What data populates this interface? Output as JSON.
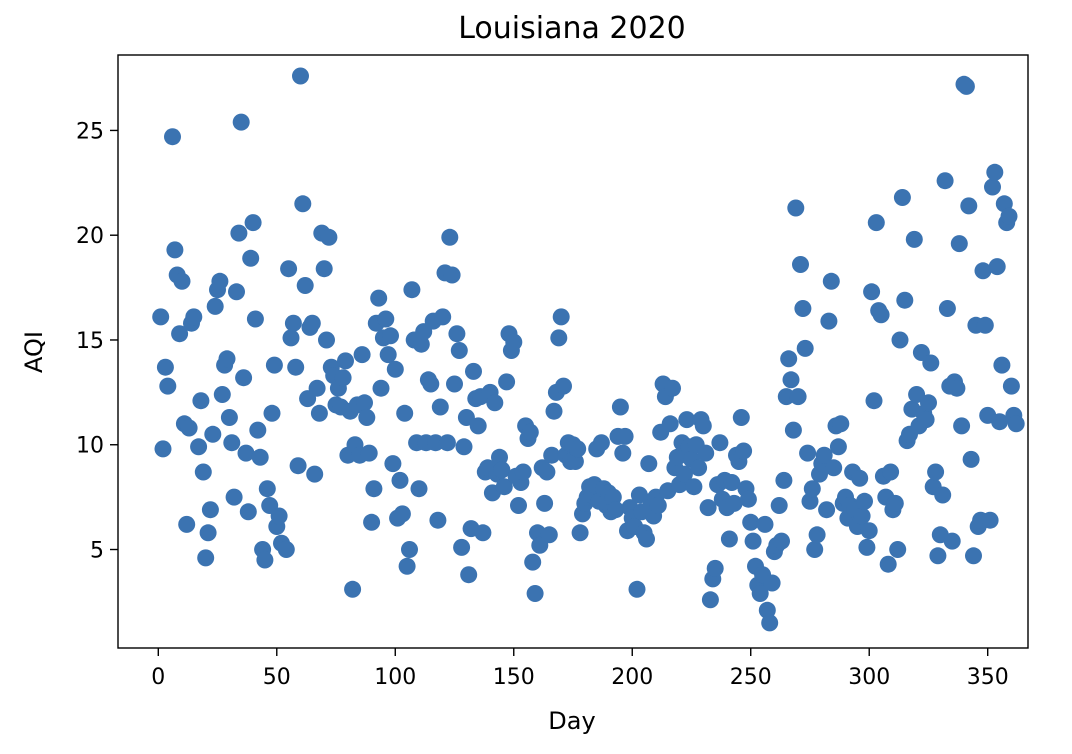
{
  "chart_data": {
    "type": "scatter",
    "title": "Louisiana 2020",
    "xlabel": "Day",
    "ylabel": "AQI",
    "xlim": [
      -17,
      367
    ],
    "ylim": [
      0.3,
      28.6
    ],
    "xticks": [
      0,
      50,
      100,
      150,
      200,
      250,
      300,
      350
    ],
    "yticks": [
      5,
      10,
      15,
      20,
      25
    ],
    "marker_color": "#3b73b1",
    "grid": false,
    "legend": "none",
    "points": [
      [
        1,
        16.1
      ],
      [
        2,
        9.8
      ],
      [
        3,
        13.7
      ],
      [
        4,
        12.8
      ],
      [
        6,
        24.7
      ],
      [
        7,
        19.3
      ],
      [
        8,
        18.1
      ],
      [
        9,
        15.3
      ],
      [
        10,
        17.8
      ],
      [
        11,
        11.0
      ],
      [
        12,
        6.2
      ],
      [
        13,
        10.8
      ],
      [
        14,
        15.8
      ],
      [
        15,
        16.1
      ],
      [
        17,
        9.9
      ],
      [
        18,
        12.1
      ],
      [
        19,
        8.7
      ],
      [
        20,
        4.6
      ],
      [
        21,
        5.8
      ],
      [
        22,
        6.9
      ],
      [
        23,
        10.5
      ],
      [
        24,
        16.6
      ],
      [
        25,
        17.4
      ],
      [
        26,
        17.8
      ],
      [
        27,
        12.4
      ],
      [
        28,
        13.8
      ],
      [
        29,
        14.1
      ],
      [
        30,
        11.3
      ],
      [
        31,
        10.1
      ],
      [
        32,
        7.5
      ],
      [
        33,
        17.3
      ],
      [
        34,
        20.1
      ],
      [
        35,
        25.4
      ],
      [
        36,
        13.2
      ],
      [
        37,
        9.6
      ],
      [
        38,
        6.8
      ],
      [
        39,
        18.9
      ],
      [
        40,
        20.6
      ],
      [
        41,
        16.0
      ],
      [
        42,
        10.7
      ],
      [
        43,
        9.4
      ],
      [
        44,
        5.0
      ],
      [
        45,
        4.5
      ],
      [
        46,
        7.9
      ],
      [
        47,
        7.1
      ],
      [
        48,
        11.5
      ],
      [
        49,
        13.8
      ],
      [
        50,
        6.1
      ],
      [
        51,
        6.6
      ],
      [
        52,
        5.3
      ],
      [
        54,
        5.0
      ],
      [
        55,
        18.4
      ],
      [
        56,
        15.1
      ],
      [
        57,
        15.8
      ],
      [
        58,
        13.7
      ],
      [
        59,
        9.0
      ],
      [
        60,
        27.6
      ],
      [
        61,
        21.5
      ],
      [
        62,
        17.6
      ],
      [
        63,
        12.2
      ],
      [
        64,
        15.6
      ],
      [
        65,
        15.8
      ],
      [
        66,
        8.6
      ],
      [
        67,
        12.7
      ],
      [
        68,
        11.5
      ],
      [
        69,
        20.1
      ],
      [
        70,
        18.4
      ],
      [
        71,
        15.0
      ],
      [
        72,
        19.9
      ],
      [
        73,
        13.7
      ],
      [
        74,
        13.3
      ],
      [
        75,
        11.9
      ],
      [
        76,
        12.7
      ],
      [
        77,
        11.8
      ],
      [
        78,
        13.2
      ],
      [
        79,
        14.0
      ],
      [
        80,
        9.5
      ],
      [
        81,
        11.6
      ],
      [
        82,
        3.1
      ],
      [
        83,
        10.0
      ],
      [
        84,
        11.9
      ],
      [
        85,
        9.5
      ],
      [
        86,
        14.3
      ],
      [
        87,
        12.0
      ],
      [
        88,
        11.3
      ],
      [
        89,
        9.6
      ],
      [
        90,
        6.3
      ],
      [
        91,
        7.9
      ],
      [
        92,
        15.8
      ],
      [
        93,
        17.0
      ],
      [
        94,
        12.7
      ],
      [
        95,
        15.1
      ],
      [
        96,
        16.0
      ],
      [
        97,
        14.3
      ],
      [
        98,
        15.2
      ],
      [
        99,
        9.1
      ],
      [
        100,
        13.6
      ],
      [
        101,
        6.5
      ],
      [
        102,
        8.3
      ],
      [
        103,
        6.7
      ],
      [
        104,
        11.5
      ],
      [
        105,
        4.2
      ],
      [
        106,
        5.0
      ],
      [
        107,
        17.4
      ],
      [
        108,
        15.0
      ],
      [
        109,
        10.1
      ],
      [
        110,
        7.9
      ],
      [
        111,
        14.8
      ],
      [
        112,
        15.4
      ],
      [
        113,
        10.1
      ],
      [
        114,
        13.1
      ],
      [
        115,
        12.9
      ],
      [
        116,
        15.9
      ],
      [
        117,
        10.1
      ],
      [
        118,
        6.4
      ],
      [
        119,
        11.8
      ],
      [
        120,
        16.1
      ],
      [
        121,
        18.2
      ],
      [
        122,
        10.1
      ],
      [
        123,
        19.9
      ],
      [
        124,
        18.1
      ],
      [
        125,
        12.9
      ],
      [
        126,
        15.3
      ],
      [
        127,
        14.5
      ],
      [
        128,
        5.1
      ],
      [
        129,
        9.9
      ],
      [
        130,
        11.3
      ],
      [
        131,
        3.8
      ],
      [
        132,
        6.0
      ],
      [
        133,
        13.5
      ],
      [
        134,
        12.2
      ],
      [
        135,
        10.9
      ],
      [
        136,
        12.3
      ],
      [
        137,
        5.8
      ],
      [
        138,
        8.7
      ],
      [
        139,
        8.9
      ],
      [
        140,
        12.5
      ],
      [
        141,
        7.7
      ],
      [
        142,
        12.0
      ],
      [
        143,
        8.6
      ],
      [
        144,
        9.4
      ],
      [
        145,
        8.8
      ],
      [
        146,
        8.0
      ],
      [
        147,
        13.0
      ],
      [
        148,
        15.3
      ],
      [
        149,
        14.5
      ],
      [
        150,
        14.9
      ],
      [
        151,
        8.5
      ],
      [
        152,
        7.1
      ],
      [
        153,
        8.2
      ],
      [
        154,
        8.7
      ],
      [
        155,
        10.9
      ],
      [
        156,
        10.3
      ],
      [
        157,
        10.6
      ],
      [
        158,
        4.4
      ],
      [
        159,
        2.9
      ],
      [
        160,
        5.8
      ],
      [
        161,
        5.2
      ],
      [
        162,
        8.9
      ],
      [
        163,
        7.2
      ],
      [
        164,
        8.7
      ],
      [
        165,
        5.7
      ],
      [
        166,
        9.5
      ],
      [
        167,
        11.6
      ],
      [
        168,
        12.5
      ],
      [
        169,
        15.1
      ],
      [
        170,
        16.1
      ],
      [
        171,
        12.8
      ],
      [
        172,
        9.5
      ],
      [
        173,
        10.1
      ],
      [
        174,
        9.2
      ],
      [
        175,
        10.0
      ],
      [
        176,
        9.2
      ],
      [
        177,
        9.8
      ],
      [
        178,
        5.8
      ],
      [
        179,
        6.7
      ],
      [
        180,
        7.2
      ],
      [
        181,
        7.5
      ],
      [
        182,
        8.0
      ],
      [
        183,
        7.6
      ],
      [
        184,
        8.1
      ],
      [
        185,
        9.8
      ],
      [
        186,
        7.3
      ],
      [
        187,
        10.1
      ],
      [
        188,
        7.9
      ],
      [
        189,
        7.1
      ],
      [
        190,
        7.7
      ],
      [
        191,
        6.8
      ],
      [
        192,
        7.5
      ],
      [
        193,
        6.9
      ],
      [
        194,
        10.4
      ],
      [
        195,
        11.8
      ],
      [
        196,
        9.6
      ],
      [
        197,
        10.4
      ],
      [
        198,
        5.9
      ],
      [
        199,
        7.0
      ],
      [
        200,
        6.5
      ],
      [
        201,
        6.1
      ],
      [
        202,
        3.1
      ],
      [
        203,
        7.6
      ],
      [
        204,
        6.8
      ],
      [
        205,
        5.8
      ],
      [
        206,
        5.5
      ],
      [
        207,
        9.1
      ],
      [
        208,
        7.3
      ],
      [
        209,
        6.6
      ],
      [
        210,
        7.5
      ],
      [
        211,
        7.1
      ],
      [
        212,
        10.6
      ],
      [
        213,
        12.9
      ],
      [
        214,
        12.3
      ],
      [
        215,
        7.8
      ],
      [
        216,
        11.0
      ],
      [
        217,
        12.7
      ],
      [
        218,
        8.9
      ],
      [
        219,
        9.4
      ],
      [
        220,
        8.1
      ],
      [
        221,
        10.1
      ],
      [
        222,
        8.6
      ],
      [
        223,
        11.2
      ],
      [
        224,
        9.9
      ],
      [
        225,
        9.3
      ],
      [
        226,
        8.0
      ],
      [
        227,
        10.0
      ],
      [
        228,
        8.9
      ],
      [
        229,
        11.2
      ],
      [
        230,
        10.9
      ],
      [
        231,
        9.6
      ],
      [
        232,
        7.0
      ],
      [
        233,
        2.6
      ],
      [
        234,
        3.6
      ],
      [
        235,
        4.1
      ],
      [
        236,
        8.1
      ],
      [
        237,
        10.1
      ],
      [
        238,
        7.4
      ],
      [
        239,
        8.3
      ],
      [
        240,
        7.0
      ],
      [
        241,
        5.5
      ],
      [
        242,
        8.2
      ],
      [
        243,
        7.2
      ],
      [
        244,
        9.5
      ],
      [
        245,
        9.2
      ],
      [
        246,
        11.3
      ],
      [
        247,
        9.7
      ],
      [
        248,
        7.9
      ],
      [
        249,
        7.4
      ],
      [
        250,
        6.3
      ],
      [
        251,
        5.4
      ],
      [
        252,
        4.2
      ],
      [
        253,
        3.3
      ],
      [
        254,
        2.9
      ],
      [
        255,
        3.8
      ],
      [
        256,
        6.2
      ],
      [
        257,
        2.1
      ],
      [
        258,
        1.5
      ],
      [
        259,
        3.4
      ],
      [
        260,
        4.9
      ],
      [
        261,
        5.2
      ],
      [
        262,
        7.1
      ],
      [
        263,
        5.4
      ],
      [
        264,
        8.3
      ],
      [
        265,
        12.3
      ],
      [
        266,
        14.1
      ],
      [
        267,
        13.1
      ],
      [
        268,
        10.7
      ],
      [
        269,
        21.3
      ],
      [
        270,
        12.3
      ],
      [
        271,
        18.6
      ],
      [
        272,
        16.5
      ],
      [
        273,
        14.6
      ],
      [
        274,
        9.6
      ],
      [
        275,
        7.3
      ],
      [
        276,
        7.9
      ],
      [
        277,
        5.0
      ],
      [
        278,
        5.7
      ],
      [
        279,
        8.6
      ],
      [
        280,
        9.1
      ],
      [
        281,
        9.5
      ],
      [
        282,
        6.9
      ],
      [
        283,
        15.9
      ],
      [
        284,
        17.8
      ],
      [
        285,
        8.9
      ],
      [
        286,
        10.9
      ],
      [
        287,
        9.9
      ],
      [
        288,
        11.0
      ],
      [
        289,
        7.2
      ],
      [
        290,
        7.5
      ],
      [
        291,
        6.5
      ],
      [
        292,
        7.1
      ],
      [
        293,
        8.7
      ],
      [
        294,
        6.9
      ],
      [
        295,
        6.1
      ],
      [
        296,
        8.4
      ],
      [
        297,
        6.6
      ],
      [
        298,
        7.3
      ],
      [
        299,
        5.1
      ],
      [
        300,
        5.9
      ],
      [
        301,
        17.3
      ],
      [
        302,
        12.1
      ],
      [
        303,
        20.6
      ],
      [
        304,
        16.4
      ],
      [
        305,
        16.2
      ],
      [
        306,
        8.5
      ],
      [
        307,
        7.5
      ],
      [
        308,
        4.3
      ],
      [
        309,
        8.7
      ],
      [
        310,
        6.9
      ],
      [
        311,
        7.2
      ],
      [
        312,
        5.0
      ],
      [
        313,
        15.0
      ],
      [
        314,
        21.8
      ],
      [
        315,
        16.9
      ],
      [
        316,
        10.2
      ],
      [
        317,
        10.5
      ],
      [
        318,
        11.7
      ],
      [
        319,
        19.8
      ],
      [
        320,
        12.4
      ],
      [
        321,
        10.9
      ],
      [
        322,
        14.4
      ],
      [
        323,
        11.5
      ],
      [
        324,
        11.2
      ],
      [
        325,
        12.0
      ],
      [
        326,
        13.9
      ],
      [
        327,
        8.0
      ],
      [
        328,
        8.7
      ],
      [
        329,
        4.7
      ],
      [
        330,
        5.7
      ],
      [
        331,
        7.6
      ],
      [
        332,
        22.6
      ],
      [
        333,
        16.5
      ],
      [
        334,
        12.8
      ],
      [
        335,
        5.4
      ],
      [
        336,
        13.0
      ],
      [
        337,
        12.7
      ],
      [
        338,
        19.6
      ],
      [
        339,
        10.9
      ],
      [
        340,
        27.2
      ],
      [
        341,
        27.1
      ],
      [
        342,
        21.4
      ],
      [
        343,
        9.3
      ],
      [
        344,
        4.7
      ],
      [
        345,
        15.7
      ],
      [
        346,
        6.1
      ],
      [
        347,
        6.4
      ],
      [
        348,
        18.3
      ],
      [
        349,
        15.7
      ],
      [
        350,
        11.4
      ],
      [
        351,
        6.4
      ],
      [
        352,
        22.3
      ],
      [
        353,
        23.0
      ],
      [
        354,
        18.5
      ],
      [
        355,
        11.1
      ],
      [
        356,
        13.8
      ],
      [
        357,
        21.5
      ],
      [
        358,
        20.6
      ],
      [
        359,
        20.9
      ],
      [
        360,
        12.8
      ],
      [
        361,
        11.4
      ],
      [
        362,
        11.0
      ]
    ]
  }
}
